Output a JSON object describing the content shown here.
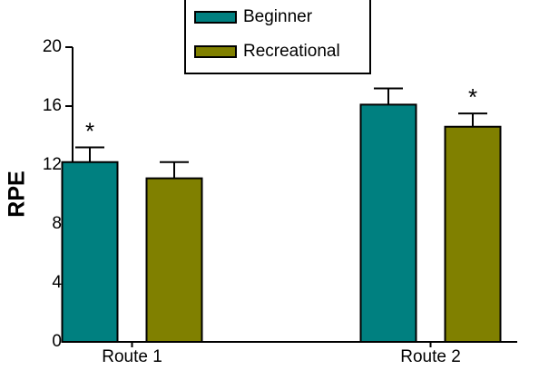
{
  "chart_data": {
    "type": "bar",
    "ylabel": "RPE",
    "categories": [
      "Route 1",
      "Route 2"
    ],
    "series": [
      {
        "name": "Beginner",
        "color": "#008080",
        "values": [
          12.2,
          16.1
        ],
        "errors": [
          1.0,
          1.1
        ],
        "markers": [
          "*",
          null
        ]
      },
      {
        "name": "Recreational",
        "color": "#808000",
        "values": [
          11.1,
          14.6
        ],
        "errors": [
          1.1,
          0.9
        ],
        "markers": [
          null,
          "*"
        ]
      }
    ],
    "ylim": [
      0,
      20
    ],
    "yticks": [
      0,
      4,
      8,
      12,
      16,
      20
    ],
    "legend": "top"
  }
}
